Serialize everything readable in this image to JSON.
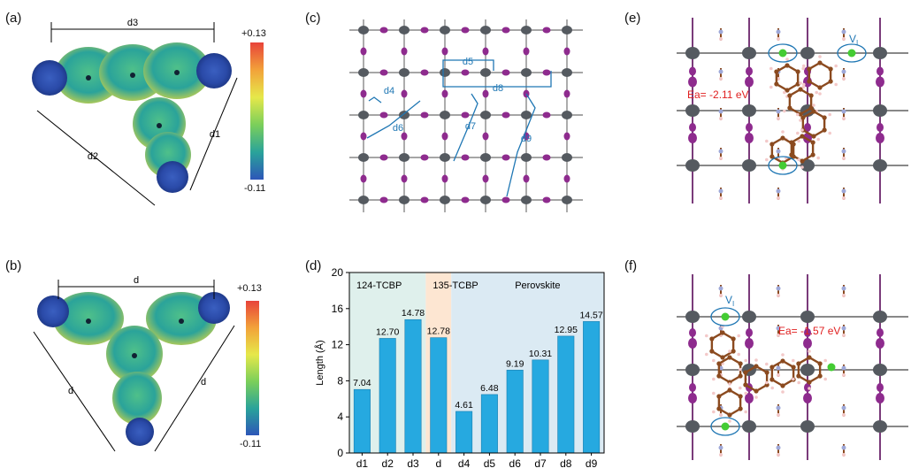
{
  "panels": {
    "a": {
      "label": "(a)",
      "dims": [
        "d3",
        "d2",
        "d1"
      ],
      "colorbar": {
        "max": "+0.13",
        "min": "-0.11"
      }
    },
    "b": {
      "label": "(b)",
      "dims": [
        "d",
        "d",
        "d"
      ],
      "colorbar": {
        "max": "+0.13",
        "min": "-0.11"
      }
    },
    "c": {
      "label": "(c)",
      "dims": [
        "d4",
        "d5",
        "d6",
        "d7",
        "d8",
        "d9"
      ]
    },
    "d": {
      "label": "(d)"
    },
    "e": {
      "label": "(e)",
      "energy": "Ea= -2.11 eV",
      "vacancy": "V",
      "vacancy_sub": "I"
    },
    "f": {
      "label": "(f)",
      "energy": "Ea= -1.57 eV",
      "vacancy": "V",
      "vacancy_sub": "I"
    }
  },
  "colors": {
    "bar": "#26a9e0",
    "bg_tcbp124": "#dff0ec",
    "bg_tcbp135": "#fde6d2",
    "bg_perovskite": "#dbeaf3",
    "energy_text": "#e02020",
    "annot": "#1f77b4",
    "pb": "#555a60",
    "iodine": "#8e2b8e",
    "carbon": "#8b4a1f",
    "vacancy": "#44cc33"
  },
  "chart_data": {
    "type": "bar",
    "categories": [
      "d1",
      "d2",
      "d3",
      "d",
      "d4",
      "d5",
      "d6",
      "d7",
      "d8",
      "d9"
    ],
    "values": [
      7.04,
      12.7,
      14.78,
      12.78,
      4.61,
      6.48,
      9.19,
      10.31,
      12.95,
      14.57
    ],
    "value_labels": [
      "7.04",
      "12.70",
      "14.78",
      "12.78",
      "4.61",
      "6.48",
      "9.19",
      "10.31",
      "12.95",
      "14.57"
    ],
    "ylabel": "Length (Å)",
    "xlabel": "",
    "ylim": [
      0,
      20
    ],
    "yticks": [
      "0",
      "4",
      "8",
      "12",
      "16",
      "20"
    ],
    "regions": [
      {
        "name": "124-TCBP",
        "from": 0,
        "to": 2
      },
      {
        "name": "135-TCBP",
        "from": 3,
        "to": 3
      },
      {
        "name": "Perovskite",
        "from": 4,
        "to": 9
      }
    ]
  }
}
